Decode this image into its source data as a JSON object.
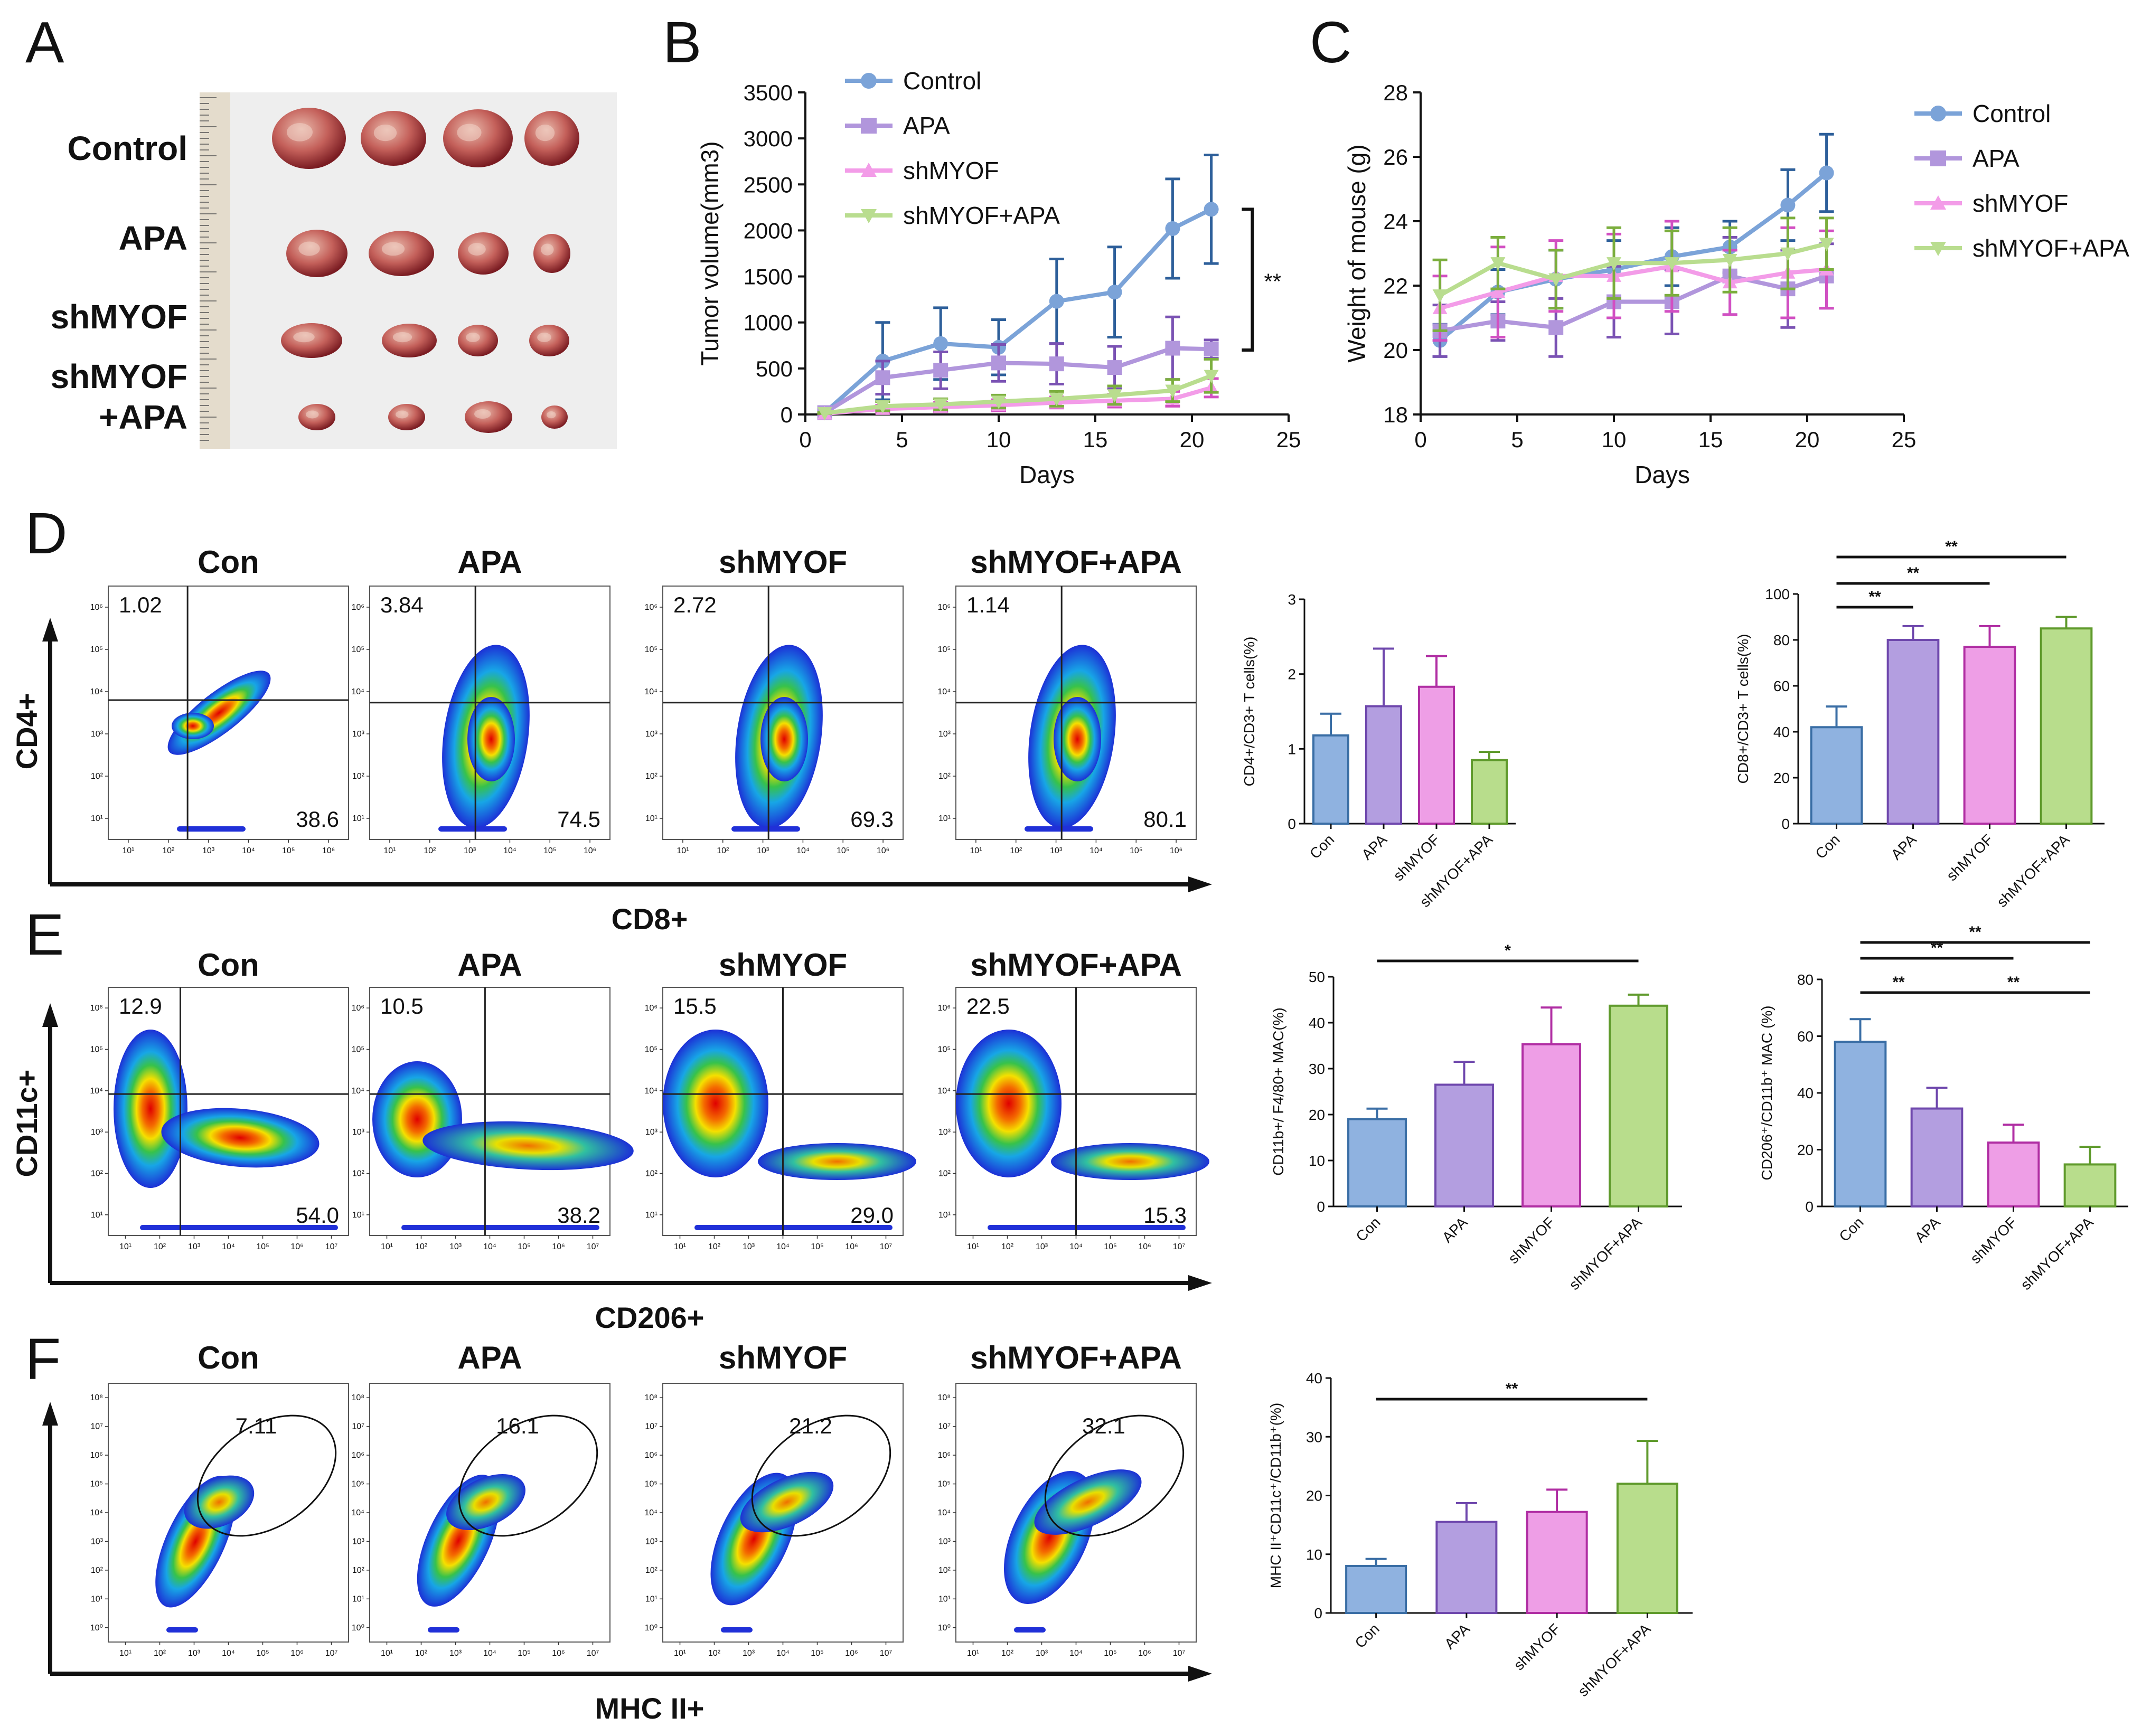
{
  "panels": {
    "A": {
      "letter": "A",
      "groups": [
        "Control",
        "APA",
        "shMYOF",
        "shMYOF",
        "+APA"
      ]
    },
    "B": {
      "letter": "B",
      "sig": "**"
    },
    "C": {
      "letter": "C"
    },
    "D": {
      "letter": "D",
      "flow_titles": [
        "Con",
        "APA",
        "shMYOF",
        "shMYOF+APA"
      ],
      "upper_left": [
        "1.02",
        "3.84",
        "2.72",
        "1.14"
      ],
      "lower_right": [
        "38.6",
        "74.5",
        "69.3",
        "80.1"
      ],
      "y_axis": "CD4+",
      "x_axis": "CD8+"
    },
    "E": {
      "letter": "E",
      "flow_titles": [
        "Con",
        "APA",
        "shMYOF",
        "shMYOF+APA"
      ],
      "upper_left": [
        "12.9",
        "10.5",
        "15.5",
        "22.5"
      ],
      "lower_right": [
        "54.0",
        "38.2",
        "29.0",
        "15.3"
      ],
      "y_axis": "CD11c+",
      "x_axis": "CD206+"
    },
    "F": {
      "letter": "F",
      "flow_titles": [
        "Con",
        "APA",
        "shMYOF",
        "shMYOF+APA"
      ],
      "gate": [
        "7.11",
        "16.1",
        "21.2",
        "32.1"
      ],
      "x_axis": "MHC II+"
    }
  },
  "chart_data": [
    {
      "id": "B",
      "type": "line",
      "title": "",
      "xlabel": "Days",
      "ylabel": "Tumor volume(mm3)",
      "xlim": [
        0,
        25
      ],
      "ylim": [
        0,
        3500
      ],
      "xticks": [
        0,
        5,
        10,
        15,
        20,
        25
      ],
      "yticks": [
        0,
        500,
        1000,
        1500,
        2000,
        2500,
        3000,
        3500
      ],
      "x": [
        1,
        4,
        7,
        10,
        13,
        16,
        19,
        21
      ],
      "series": [
        {
          "name": "Control",
          "color": "#7ba3d8",
          "errcolor": "#2d5f9a",
          "marker": "circle",
          "values": [
            20,
            580,
            770,
            730,
            1230,
            1330,
            2020,
            2230
          ],
          "errors": [
            20,
            420,
            390,
            300,
            460,
            490,
            540,
            590
          ]
        },
        {
          "name": "APA",
          "color": "#b196dc",
          "errcolor": "#7a52b3",
          "marker": "square",
          "values": [
            20,
            400,
            480,
            560,
            550,
            510,
            720,
            710
          ],
          "errors": [
            10,
            180,
            200,
            200,
            220,
            230,
            340,
            100
          ]
        },
        {
          "name": "shMYOF",
          "color": "#f39ce8",
          "errcolor": "#d24fc2",
          "marker": "triangle",
          "values": [
            10,
            60,
            80,
            100,
            130,
            150,
            170,
            290
          ],
          "errors": [
            5,
            40,
            50,
            60,
            60,
            70,
            80,
            100
          ]
        },
        {
          "name": "shMYOF+APA",
          "color": "#b9dd8f",
          "errcolor": "#7bae3d",
          "marker": "tridown",
          "values": [
            15,
            90,
            110,
            140,
            170,
            210,
            260,
            420
          ],
          "errors": [
            5,
            50,
            60,
            70,
            80,
            100,
            120,
            180
          ]
        }
      ],
      "significance": "**"
    },
    {
      "id": "C",
      "type": "line",
      "title": "",
      "xlabel": "Days",
      "ylabel": "Weight of mouse (g)",
      "xlim": [
        0,
        25
      ],
      "ylim": [
        18,
        28
      ],
      "xticks": [
        0,
        5,
        10,
        15,
        20,
        25
      ],
      "yticks": [
        18,
        20,
        22,
        24,
        26,
        28
      ],
      "x": [
        1,
        4,
        7,
        10,
        13,
        16,
        19,
        21
      ],
      "series": [
        {
          "name": "Control",
          "color": "#7ba3d8",
          "errcolor": "#2d5f9a",
          "marker": "circle",
          "values": [
            20.3,
            21.8,
            22.2,
            22.5,
            22.9,
            23.2,
            24.5,
            25.5
          ],
          "errors": [
            0.5,
            0.7,
            0.9,
            0.9,
            0.9,
            0.8,
            1.1,
            1.2
          ]
        },
        {
          "name": "APA",
          "color": "#b196dc",
          "errcolor": "#7a52b3",
          "marker": "square",
          "values": [
            20.6,
            20.9,
            20.7,
            21.5,
            21.5,
            22.3,
            21.9,
            22.3
          ],
          "errors": [
            0.8,
            0.6,
            0.9,
            1.1,
            1.0,
            1.2,
            1.2,
            1.0
          ]
        },
        {
          "name": "shMYOF",
          "color": "#f39ce8",
          "errcolor": "#d24fc2",
          "marker": "triangle",
          "values": [
            21.3,
            21.8,
            22.3,
            22.3,
            22.6,
            22.1,
            22.4,
            22.5
          ],
          "errors": [
            1.0,
            1.4,
            1.1,
            1.3,
            1.4,
            1.0,
            1.4,
            1.2
          ]
        },
        {
          "name": "shMYOF+APA",
          "color": "#b9dd8f",
          "errcolor": "#7bae3d",
          "marker": "tridown",
          "values": [
            21.7,
            22.7,
            22.2,
            22.7,
            22.7,
            22.8,
            23.0,
            23.3
          ],
          "errors": [
            1.1,
            0.8,
            0.9,
            1.1,
            1.0,
            1.0,
            1.1,
            0.8
          ]
        }
      ]
    },
    {
      "id": "D1",
      "type": "bar",
      "ylabel": "CD4+/CD3+ T cells(%)",
      "categories": [
        "Con",
        "APA",
        "shMYOF",
        "shMYOF+APA"
      ],
      "values": [
        1.18,
        1.57,
        1.83,
        0.85
      ],
      "errors": [
        0.29,
        0.77,
        0.41,
        0.11
      ],
      "ylim": [
        0,
        3
      ],
      "yticks": [
        0,
        1,
        2,
        3
      ],
      "significance": []
    },
    {
      "id": "D2",
      "type": "bar",
      "ylabel": "CD8+/CD3+ T cells(%)",
      "categories": [
        "Con",
        "APA",
        "shMYOF",
        "shMYOF+APA"
      ],
      "values": [
        42,
        80,
        77,
        85
      ],
      "errors": [
        9,
        6,
        9,
        5
      ],
      "ylim": [
        0,
        100
      ],
      "yticks": [
        0,
        20,
        40,
        60,
        80,
        100
      ],
      "significance": [
        {
          "from": 0,
          "to": 1,
          "label": "**"
        },
        {
          "from": 0,
          "to": 2,
          "label": "**"
        },
        {
          "from": 0,
          "to": 3,
          "label": "**"
        }
      ]
    },
    {
      "id": "E1",
      "type": "bar",
      "ylabel": "CD11b+/ F4/80+ MAC(%)",
      "categories": [
        "Con",
        "APA",
        "shMYOF",
        "shMYOF+APA"
      ],
      "values": [
        19,
        26.5,
        35.3,
        43.7
      ],
      "errors": [
        2.3,
        5,
        8,
        2.4
      ],
      "ylim": [
        0,
        50
      ],
      "yticks": [
        0,
        10,
        20,
        30,
        40,
        50
      ],
      "significance": [
        {
          "from": 0,
          "to": 3,
          "label": "*"
        }
      ]
    },
    {
      "id": "E2",
      "type": "bar",
      "ylabel": "CD206⁺/CD11b⁺ MAC (%)",
      "categories": [
        "Con",
        "APA",
        "shMYOF",
        "shMYOF+APA"
      ],
      "values": [
        58,
        34.5,
        22.5,
        14.8
      ],
      "errors": [
        8,
        7.3,
        6.3,
        6.2
      ],
      "ylim": [
        0,
        80
      ],
      "yticks": [
        0,
        20,
        40,
        60,
        80
      ],
      "significance": [
        {
          "from": 0,
          "to": 1,
          "label": "**"
        },
        {
          "from": 1,
          "to": 3,
          "label": "**"
        },
        {
          "from": 0,
          "to": 2,
          "label": "**"
        },
        {
          "from": 0,
          "to": 3,
          "label": "**"
        }
      ]
    },
    {
      "id": "F1",
      "type": "bar",
      "ylabel": "MHC II⁺CD11c⁺/CD11b⁺(%)",
      "categories": [
        "Con",
        "APA",
        "shMYOF",
        "shMYOF+APA"
      ],
      "values": [
        8,
        15.5,
        17.2,
        22
      ],
      "errors": [
        1.2,
        3.2,
        3.8,
        7.3
      ],
      "ylim": [
        0,
        40
      ],
      "yticks": [
        0,
        10,
        20,
        30,
        40
      ],
      "significance": [
        {
          "from": 0,
          "to": 3,
          "label": "**"
        }
      ]
    }
  ],
  "bar_palette": {
    "fill": [
      "#8fb2e0",
      "#b39ee0",
      "#ee9ee6",
      "#b8dd8c"
    ],
    "stroke": [
      "#3a6ea5",
      "#6f48ad",
      "#b02ea3",
      "#5f9a2c"
    ]
  },
  "flow_tick_exp": [
    "10¹",
    "10²",
    "10³",
    "10⁴",
    "10⁵",
    "10⁶"
  ],
  "flow_tick_exp_f": [
    "10¹",
    "10²",
    "10³",
    "10⁴",
    "10⁵",
    "10⁶",
    "10⁷"
  ],
  "flow_tick_yexp": [
    "10¹",
    "10²",
    "10³",
    "10⁴",
    "10⁵",
    "10⁶"
  ],
  "flow_tick_yexp_f": [
    "10⁰",
    "10¹",
    "10²",
    "10³",
    "10⁴",
    "10⁵",
    "10⁶",
    "10⁷",
    "10⁸"
  ]
}
